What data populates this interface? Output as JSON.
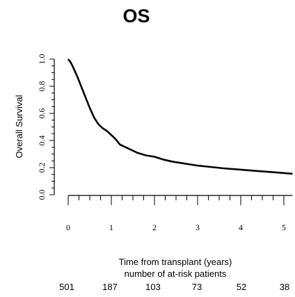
{
  "chart_data": {
    "type": "line",
    "title": "OS",
    "xlabel": "Time from transplant (years)",
    "ylabel": "Overall Survival",
    "xlim": [
      0,
      5.2
    ],
    "ylim": [
      0,
      1.0
    ],
    "x_ticks": [
      "0",
      "1",
      "2",
      "3",
      "4",
      "5"
    ],
    "y_ticks": [
      "0.0",
      "0.2",
      "0.4",
      "0.6",
      "0.8",
      "1.0"
    ],
    "grid": false,
    "series": [
      {
        "x": [
          0,
          0.05,
          0.1,
          0.2,
          0.3,
          0.4,
          0.5,
          0.6,
          0.7,
          0.8,
          0.9,
          1.0,
          1.1,
          1.2,
          1.4,
          1.6,
          1.8,
          2.0,
          2.2,
          2.4,
          2.6,
          2.8,
          3.0,
          3.3,
          3.6,
          4.0,
          4.4,
          4.8,
          5.2
        ],
        "values": [
          1.0,
          0.98,
          0.95,
          0.88,
          0.8,
          0.72,
          0.64,
          0.57,
          0.52,
          0.49,
          0.47,
          0.44,
          0.41,
          0.37,
          0.34,
          0.31,
          0.29,
          0.28,
          0.26,
          0.245,
          0.235,
          0.225,
          0.215,
          0.205,
          0.195,
          0.185,
          0.175,
          0.165,
          0.155
        ]
      }
    ],
    "at_risk": {
      "label": "number of at-risk patients",
      "counts": [
        "501",
        "187",
        "103",
        "73",
        "52",
        "38"
      ]
    }
  }
}
